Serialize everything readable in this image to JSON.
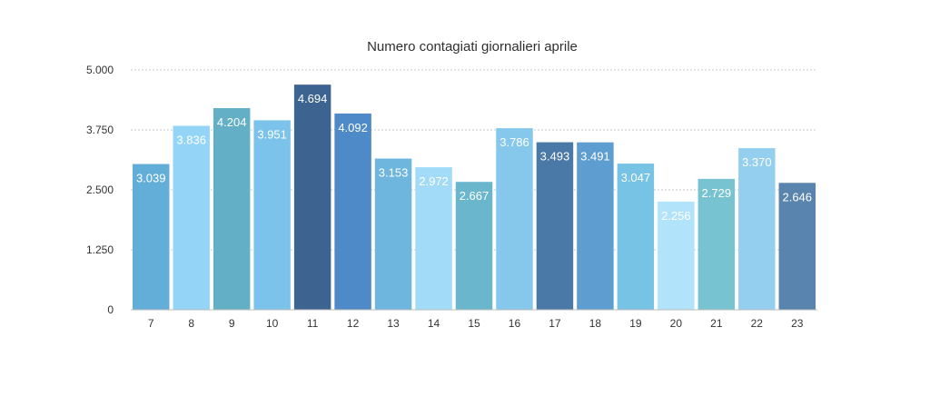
{
  "chart_data": {
    "type": "bar",
    "title": "Numero contagiati giornalieri aprile",
    "xlabel": "",
    "ylabel": "",
    "categories": [
      "7",
      "8",
      "9",
      "10",
      "11",
      "12",
      "13",
      "14",
      "15",
      "16",
      "17",
      "18",
      "19",
      "20",
      "21",
      "22",
      "23"
    ],
    "values": [
      3039,
      3836,
      4204,
      3951,
      4694,
      4092,
      3153,
      2972,
      2667,
      3786,
      3493,
      3491,
      3047,
      2256,
      2729,
      3370,
      2646
    ],
    "value_labels": [
      "3.039",
      "3.836",
      "4.204",
      "3.951",
      "4.694",
      "4.092",
      "3.153",
      "2.972",
      "2.667",
      "3.786",
      "3.493",
      "3.491",
      "3.047",
      "2.256",
      "2.729",
      "3.370",
      "2.646"
    ],
    "ylim": [
      0,
      5000
    ],
    "yticks": [
      0,
      1250,
      2500,
      3750,
      5000
    ],
    "ytick_labels": [
      "0",
      "1.250",
      "2.500",
      "3.750",
      "5.000"
    ],
    "grid": true,
    "legend": "none",
    "colors": [
      "#63aed8",
      "#94d5f7",
      "#63afc6",
      "#7bc3ea",
      "#3d6490",
      "#4f8ac8",
      "#6eb6dd",
      "#a2dbf7",
      "#6ab7cd",
      "#86c8ec",
      "#4a79a8",
      "#5e9dd0",
      "#77c3e5",
      "#b1e3fb",
      "#78c3d2",
      "#94cff0",
      "#5884ad"
    ]
  }
}
